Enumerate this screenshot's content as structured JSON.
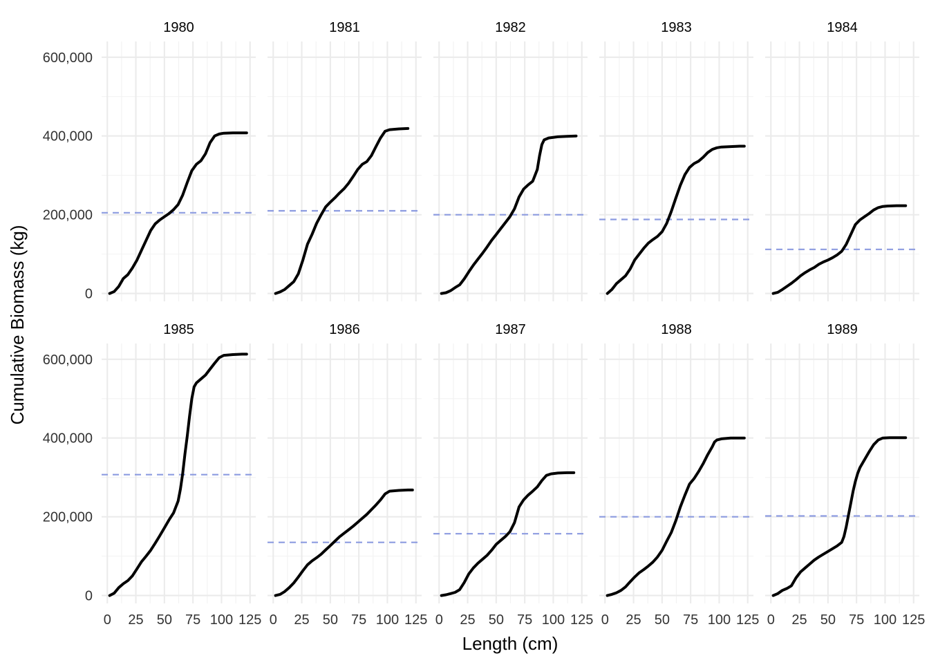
{
  "chart_data": {
    "type": "line",
    "xlabel": "Length (cm)",
    "ylabel": "Cumulative Biomass (kg)",
    "xlim": [
      -5,
      130
    ],
    "ylim": [
      -20000,
      640000
    ],
    "x_ticks": [
      0,
      25,
      50,
      75,
      100,
      125
    ],
    "x_tick_labels": [
      "0",
      "25",
      "50",
      "75",
      "100",
      "125"
    ],
    "y_ticks": [
      0,
      200000,
      400000,
      600000
    ],
    "y_tick_labels": [
      "0",
      "200,000",
      "400,000",
      "600,000"
    ],
    "grid": true,
    "legend": "none",
    "series_color": "#000000",
    "reference_line_color": "#8c9be0",
    "panels": [
      {
        "label": "1980",
        "reference": 205000,
        "x": [
          2,
          6,
          10,
          14,
          18,
          22,
          26,
          30,
          34,
          38,
          42,
          46,
          50,
          54,
          58,
          62,
          66,
          70,
          74,
          78,
          82,
          86,
          90,
          94,
          98,
          102,
          110,
          118,
          122
        ],
        "y": [
          0,
          5000,
          18000,
          38000,
          48000,
          65000,
          85000,
          110000,
          135000,
          160000,
          177000,
          187000,
          195000,
          203000,
          213000,
          226000,
          250000,
          282000,
          312000,
          328000,
          337000,
          355000,
          383000,
          400000,
          405000,
          407000,
          408000,
          408000,
          408000
        ]
      },
      {
        "label": "1981",
        "reference": 210000,
        "x": [
          2,
          6,
          10,
          14,
          18,
          22,
          26,
          30,
          34,
          38,
          42,
          46,
          50,
          54,
          58,
          62,
          66,
          70,
          74,
          78,
          82,
          86,
          90,
          94,
          98,
          102,
          110,
          118
        ],
        "y": [
          0,
          4000,
          10000,
          20000,
          30000,
          50000,
          85000,
          125000,
          150000,
          178000,
          200000,
          220000,
          232000,
          243000,
          255000,
          266000,
          280000,
          297000,
          315000,
          328000,
          335000,
          350000,
          373000,
          395000,
          412000,
          416000,
          418000,
          419000
        ]
      },
      {
        "label": "1982",
        "reference": 200000,
        "x": [
          2,
          6,
          10,
          14,
          18,
          22,
          26,
          30,
          34,
          38,
          42,
          46,
          50,
          54,
          58,
          62,
          66,
          70,
          74,
          78,
          82,
          86,
          88,
          90,
          92,
          96,
          104,
          112,
          120
        ],
        "y": [
          0,
          2000,
          7000,
          15000,
          22000,
          37000,
          55000,
          72000,
          87000,
          102000,
          118000,
          135000,
          150000,
          165000,
          180000,
          195000,
          215000,
          245000,
          265000,
          276000,
          285000,
          315000,
          350000,
          378000,
          390000,
          395000,
          398000,
          399000,
          400000
        ]
      },
      {
        "label": "1983",
        "reference": 188000,
        "x": [
          2,
          6,
          10,
          14,
          18,
          22,
          26,
          30,
          34,
          38,
          42,
          46,
          50,
          54,
          58,
          62,
          66,
          70,
          74,
          78,
          82,
          86,
          90,
          94,
          98,
          102,
          110,
          118,
          122
        ],
        "y": [
          0,
          10000,
          25000,
          35000,
          45000,
          62000,
          85000,
          100000,
          115000,
          128000,
          137000,
          145000,
          157000,
          178000,
          208000,
          242000,
          275000,
          302000,
          320000,
          330000,
          336000,
          346000,
          358000,
          366000,
          370000,
          372000,
          373000,
          374000,
          374000
        ]
      },
      {
        "label": "1984",
        "reference": 112000,
        "x": [
          2,
          6,
          10,
          14,
          18,
          22,
          26,
          30,
          34,
          38,
          42,
          46,
          50,
          54,
          58,
          62,
          66,
          70,
          74,
          78,
          82,
          86,
          90,
          94,
          98,
          102,
          110,
          118
        ],
        "y": [
          0,
          3000,
          10000,
          18000,
          26000,
          35000,
          45000,
          53000,
          60000,
          66000,
          74000,
          80000,
          85000,
          91000,
          98000,
          107000,
          125000,
          150000,
          175000,
          187000,
          195000,
          203000,
          212000,
          218000,
          221000,
          222000,
          223000,
          223000
        ]
      },
      {
        "label": "1985",
        "reference": 307000,
        "x": [
          2,
          6,
          10,
          14,
          18,
          22,
          26,
          30,
          34,
          38,
          42,
          46,
          50,
          54,
          58,
          62,
          64,
          66,
          68,
          70,
          72,
          74,
          76,
          78,
          82,
          86,
          90,
          94,
          98,
          102,
          110,
          118,
          122
        ],
        "y": [
          0,
          6000,
          20000,
          30000,
          38000,
          50000,
          68000,
          86000,
          100000,
          115000,
          133000,
          152000,
          172000,
          192000,
          210000,
          240000,
          270000,
          310000,
          360000,
          405000,
          455000,
          500000,
          530000,
          540000,
          550000,
          560000,
          575000,
          590000,
          604000,
          610000,
          612000,
          613000,
          613000
        ]
      },
      {
        "label": "1986",
        "reference": 135000,
        "x": [
          2,
          6,
          10,
          14,
          18,
          22,
          26,
          30,
          34,
          38,
          42,
          46,
          50,
          54,
          58,
          62,
          66,
          70,
          74,
          78,
          82,
          86,
          90,
          94,
          98,
          102,
          110,
          118,
          122
        ],
        "y": [
          0,
          3000,
          10000,
          20000,
          32000,
          47000,
          63000,
          78000,
          88000,
          96000,
          105000,
          116000,
          127000,
          138000,
          149000,
          158000,
          167000,
          176000,
          186000,
          196000,
          206000,
          218000,
          230000,
          243000,
          258000,
          265000,
          267000,
          268000,
          268000
        ]
      },
      {
        "label": "1987",
        "reference": 157000,
        "x": [
          2,
          6,
          10,
          14,
          18,
          22,
          26,
          30,
          34,
          38,
          42,
          46,
          50,
          54,
          58,
          62,
          66,
          70,
          74,
          78,
          82,
          86,
          90,
          94,
          98,
          104,
          112,
          118
        ],
        "y": [
          0,
          2000,
          5000,
          8000,
          15000,
          33000,
          55000,
          70000,
          82000,
          92000,
          102000,
          115000,
          130000,
          140000,
          150000,
          162000,
          185000,
          225000,
          243000,
          255000,
          265000,
          276000,
          292000,
          305000,
          309000,
          311000,
          312000,
          312000
        ]
      },
      {
        "label": "1988",
        "reference": 200000,
        "x": [
          2,
          6,
          10,
          14,
          18,
          22,
          26,
          30,
          34,
          38,
          42,
          46,
          50,
          54,
          58,
          62,
          66,
          70,
          74,
          78,
          82,
          86,
          90,
          94,
          96,
          98,
          102,
          110,
          118,
          122
        ],
        "y": [
          0,
          3000,
          7000,
          13000,
          22000,
          35000,
          47000,
          58000,
          66000,
          75000,
          85000,
          98000,
          115000,
          138000,
          160000,
          190000,
          225000,
          255000,
          283000,
          297000,
          315000,
          335000,
          358000,
          378000,
          390000,
          395000,
          398000,
          400000,
          400000,
          400000
        ]
      },
      {
        "label": "1989",
        "reference": 202000,
        "x": [
          2,
          6,
          10,
          14,
          18,
          22,
          26,
          30,
          34,
          38,
          42,
          46,
          50,
          54,
          58,
          62,
          64,
          66,
          68,
          70,
          72,
          74,
          76,
          78,
          82,
          86,
          90,
          94,
          98,
          104,
          112,
          118
        ],
        "y": [
          0,
          5000,
          13000,
          18000,
          25000,
          45000,
          60000,
          70000,
          80000,
          90000,
          98000,
          105000,
          112000,
          119000,
          126000,
          135000,
          150000,
          175000,
          205000,
          235000,
          265000,
          290000,
          310000,
          325000,
          345000,
          365000,
          383000,
          395000,
          400000,
          401000,
          401000,
          401000
        ]
      }
    ]
  }
}
